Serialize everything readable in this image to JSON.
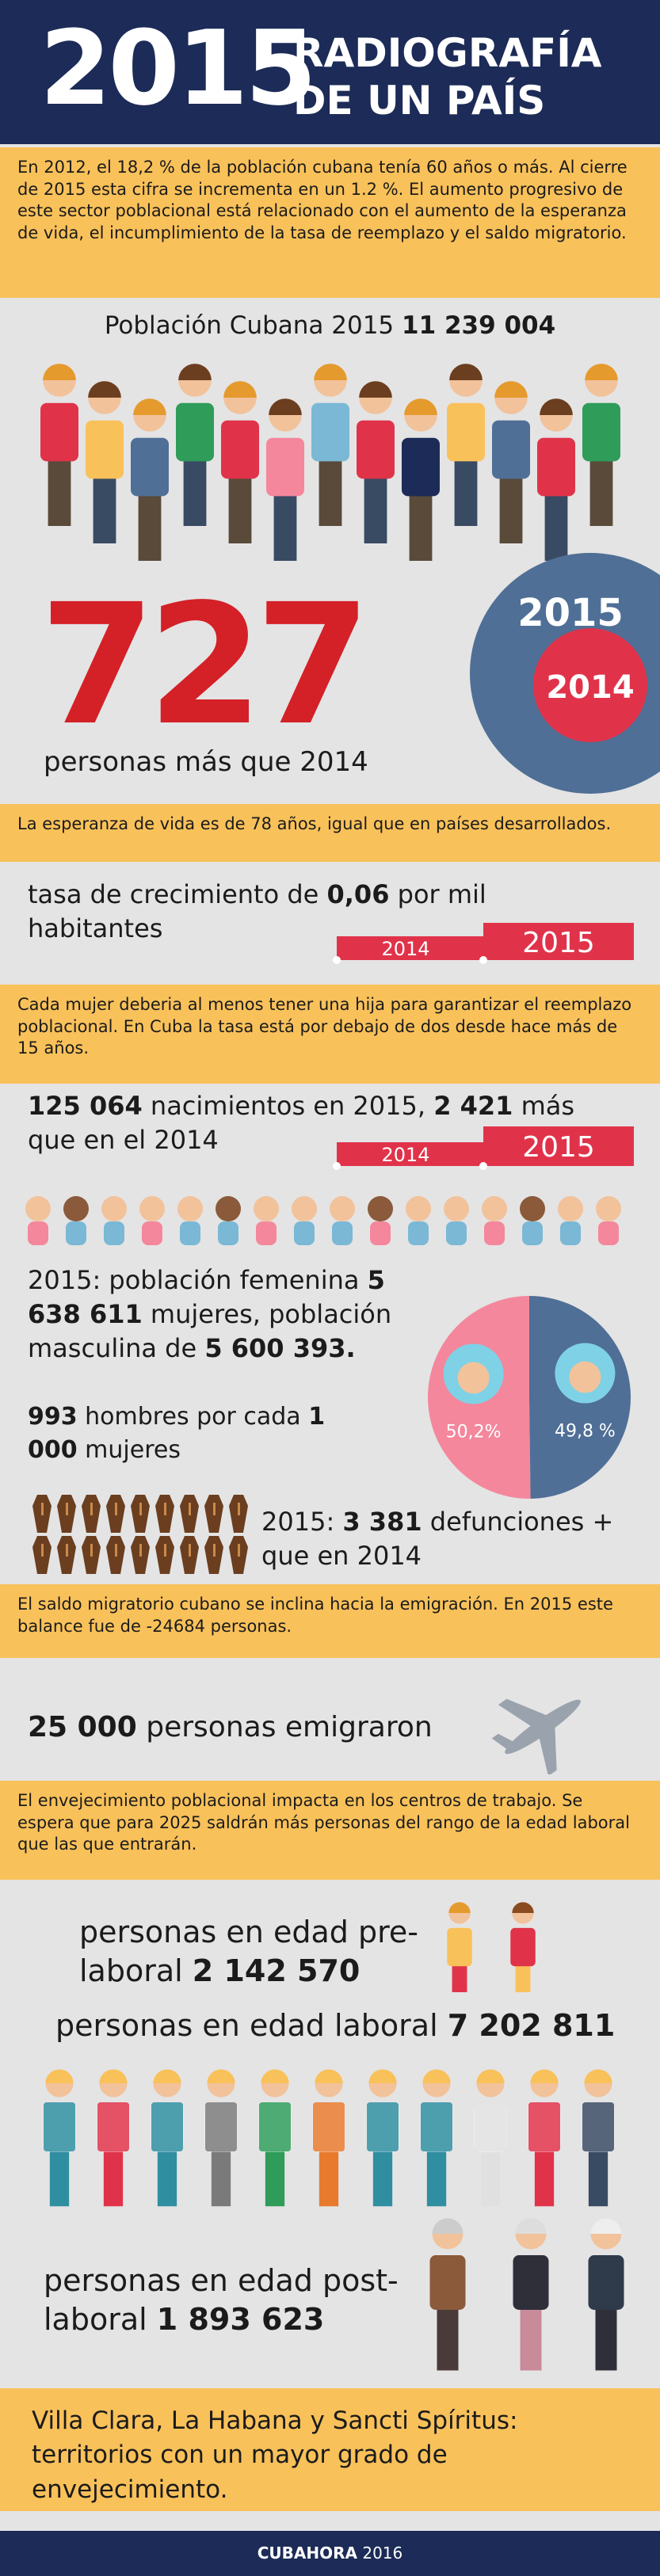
{
  "header": {
    "year": "2015",
    "title_line1": "RADIOGRAFÍA",
    "title_line2": "DE UN PAÍS"
  },
  "intro": "En 2012, el 18,2 % de la población cubana tenía 60 años o más. Al cierre de 2015 esta cifra se incrementa en un 1.2 %. El aumento progresivo de este sector poblacional está relacionado con el aumento de la esperanza de vida, el incumplimiento de la tasa de reemplazo y el saldo migratorio.",
  "population": {
    "label": "Población Cubana 2015",
    "number": "11 239 004"
  },
  "increase": {
    "number": "727",
    "label": "personas más que 2014",
    "circle_outer": "2015",
    "circle_inner": "2014"
  },
  "life_expectancy": "La esperanza de vida es de 78 años, igual que en países desarrollados.",
  "growth": {
    "text_before": "tasa de crecimiento de",
    "number": "0,06",
    "text_after": "por mil habitantes",
    "bar_2014": "2014",
    "bar_2015": "2015"
  },
  "replacement": "Cada mujer deberia al menos tener una hija para garantizar el reemplazo poblacional. En Cuba la tasa está por debajo de dos desde hace más de 15 años.",
  "births": {
    "number1": "125 064",
    "text1": "nacimientos en 2015,",
    "number2": "2 421",
    "text2": "más que en el 2014",
    "bar_2014": "2014",
    "bar_2015": "2015"
  },
  "gender": {
    "text1": "2015: población femenina",
    "number1": "5 638 611",
    "text2": "mujeres, población masculina de",
    "number2": "5 600 393",
    "text3": "."
  },
  "ratio": {
    "number1": "993",
    "text1": "hombres por cada",
    "number2": "1 000",
    "text2": "mujeres"
  },
  "pie": {
    "values": [
      50.2,
      49.8
    ],
    "value_labels": [
      "50,2%",
      "49,8 %"
    ],
    "colors": [
      "#f4879c",
      "#4f6f96"
    ]
  },
  "deaths": {
    "text1": "2015:",
    "number": "3 381",
    "text2": "defunciones + que en 2014"
  },
  "migration_note": "El saldo migratorio cubano se inclina hacia la emigración. En 2015 este balance fue de -24684 personas.",
  "emigrated": {
    "number": "25 000",
    "text": "personas emigraron"
  },
  "aging_note": "El envejecimiento poblacional impacta en los centros de trabajo. Se espera que para 2025 saldrán más personas del rango de la edad laboral que las que entrarán.",
  "pre_working": {
    "text": "personas en edad pre-laboral",
    "number": "2 142 570"
  },
  "working": {
    "text": "personas en edad laboral",
    "number": "7 202 811"
  },
  "post_working": {
    "text": "personas en edad post-laboral",
    "number": "1 893 623"
  },
  "conclusion": "Villa Clara, La Habana y Sancti Spíritus: territorios con un mayor grado de envejecimiento.",
  "footer": {
    "brand": "CUBAHORA",
    "year": "2016"
  }
}
